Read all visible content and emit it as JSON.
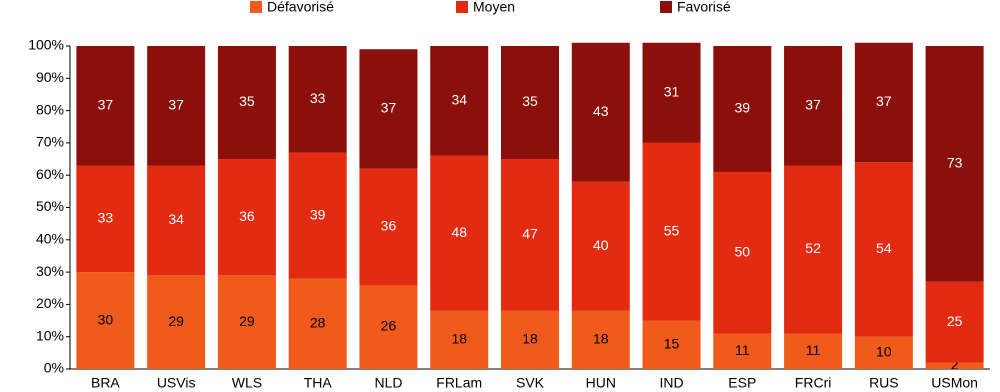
{
  "chart_data": {
    "type": "stacked_bar",
    "categories": [
      "BRA",
      "USVis",
      "WLS",
      "THA",
      "NLD",
      "FRLam",
      "SVK",
      "HUN",
      "IND",
      "ESP",
      "FRCri",
      "RUS",
      "USMon"
    ],
    "series": [
      {
        "name": "Défavorisé",
        "color": "#f05a1a",
        "label_color": "#000000",
        "values": [
          30,
          29,
          29,
          28,
          26,
          18,
          18,
          18,
          15,
          11,
          11,
          10,
          2
        ]
      },
      {
        "name": "Moyen",
        "color": "#e32b12",
        "label_color": "#ffffff",
        "values": [
          33,
          34,
          36,
          39,
          36,
          48,
          47,
          40,
          55,
          50,
          52,
          54,
          25
        ]
      },
      {
        "name": "Favorisé",
        "color": "#8b0f0a",
        "label_color": "#ffffff",
        "values": [
          37,
          37,
          35,
          33,
          37,
          34,
          35,
          43,
          31,
          39,
          37,
          37,
          73
        ]
      }
    ],
    "ylim": [
      0,
      100
    ],
    "yticks": [
      {
        "value": 0,
        "label": "0%"
      },
      {
        "value": 10,
        "label": "10%"
      },
      {
        "value": 20,
        "label": "20%"
      },
      {
        "value": 30,
        "label": "30%"
      },
      {
        "value": 40,
        "label": "40%"
      },
      {
        "value": 50,
        "label": "50%"
      },
      {
        "value": 60,
        "label": "60%"
      },
      {
        "value": 70,
        "label": "70%"
      },
      {
        "value": 80,
        "label": "80%"
      },
      {
        "value": 90,
        "label": "90%"
      },
      {
        "value": 100,
        "label": "100%"
      }
    ],
    "grid": false,
    "legend": "top"
  }
}
